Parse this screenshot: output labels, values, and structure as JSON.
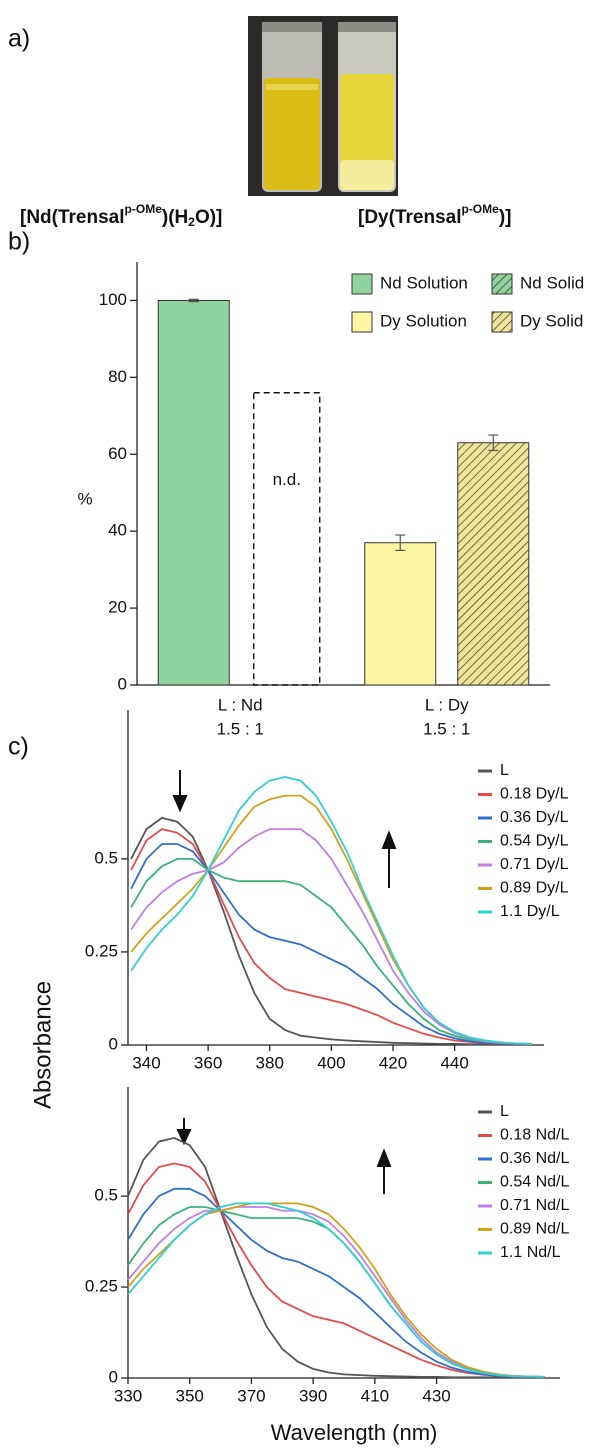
{
  "panel_a": {
    "label": "a)",
    "captions": [
      [
        "[Nd(Trensal",
        "p-OMe",
        ")(H",
        "2",
        "O)]"
      ],
      [
        "[Dy(Trensal",
        "p-OMe",
        ")]"
      ]
    ]
  },
  "chart_data": [
    {
      "type": "bar",
      "panel": "b)",
      "ylabel": "%",
      "categories": [
        "L  : Nd",
        "L  : Dy"
      ],
      "category_sublabels": [
        "1.5 : 1",
        "1.5 : 1"
      ],
      "ylim": [
        0,
        110
      ],
      "yticks": [
        0,
        20,
        40,
        60,
        80,
        100
      ],
      "legend": "upper right",
      "series": [
        {
          "name": "Nd Solution",
          "color": "#8fd49f",
          "hatch": false,
          "values": [
            100,
            null
          ],
          "errors": [
            0.3,
            null
          ]
        },
        {
          "name": "Nd Solid",
          "color": "#8fd49f",
          "hatch": true,
          "values": [
            null,
            null
          ],
          "errors": [
            null,
            null
          ]
        },
        {
          "name": "Dy Solution",
          "color": "#fbf6a2",
          "hatch": false,
          "values": [
            null,
            37
          ],
          "errors": [
            null,
            2
          ]
        },
        {
          "name": "Dy Solid",
          "color": "#eee596",
          "hatch": true,
          "values": [
            null,
            63
          ],
          "errors": [
            null,
            2
          ]
        }
      ],
      "annotations": [
        {
          "text": "n.d.",
          "y": 76
        }
      ]
    },
    {
      "type": "line",
      "panel": "c)",
      "ylabel": "Absorbance",
      "xlim": [
        334,
        469
      ],
      "ylim": [
        0,
        0.9
      ],
      "xticks": [
        340,
        360,
        380,
        400,
        420,
        440
      ],
      "yticks": [
        0,
        0.25,
        0.5
      ],
      "x": [
        335,
        340,
        345,
        350,
        355,
        360,
        365,
        370,
        375,
        380,
        385,
        390,
        395,
        400,
        405,
        410,
        415,
        420,
        425,
        430,
        435,
        440,
        445,
        450,
        455,
        460,
        465
      ],
      "series": [
        {
          "name": "L",
          "color": "#555555",
          "values": [
            0.5,
            0.58,
            0.61,
            0.6,
            0.56,
            0.47,
            0.36,
            0.24,
            0.14,
            0.07,
            0.04,
            0.025,
            0.02,
            0.015,
            0.012,
            0.01,
            0.008,
            0.006,
            0.005,
            0.004,
            0.003,
            0.003,
            0.002,
            0.002,
            0.002,
            0.002,
            0.002
          ]
        },
        {
          "name": "0.18 Dy/L",
          "color": "#e84a4a",
          "values": [
            0.47,
            0.55,
            0.58,
            0.57,
            0.54,
            0.47,
            0.38,
            0.29,
            0.22,
            0.18,
            0.15,
            0.14,
            0.13,
            0.12,
            0.11,
            0.095,
            0.08,
            0.06,
            0.045,
            0.03,
            0.02,
            0.012,
            0.008,
            0.005,
            0.004,
            0.003,
            0.003
          ]
        },
        {
          "name": "0.36 Dy/L",
          "color": "#2f6fd1",
          "values": [
            0.42,
            0.5,
            0.54,
            0.54,
            0.52,
            0.47,
            0.41,
            0.35,
            0.31,
            0.29,
            0.28,
            0.27,
            0.25,
            0.23,
            0.21,
            0.18,
            0.15,
            0.11,
            0.08,
            0.05,
            0.03,
            0.018,
            0.01,
            0.006,
            0.004,
            0.003,
            0.003
          ]
        },
        {
          "name": "0.54 Dy/L",
          "color": "#3ab27a",
          "values": [
            0.37,
            0.44,
            0.48,
            0.5,
            0.5,
            0.47,
            0.45,
            0.44,
            0.44,
            0.44,
            0.44,
            0.43,
            0.4,
            0.37,
            0.32,
            0.27,
            0.21,
            0.16,
            0.11,
            0.07,
            0.04,
            0.025,
            0.015,
            0.009,
            0.006,
            0.004,
            0.003
          ]
        },
        {
          "name": "0.71 Dy/L",
          "color": "#c07ee6",
          "values": [
            0.31,
            0.37,
            0.41,
            0.44,
            0.46,
            0.47,
            0.49,
            0.53,
            0.56,
            0.58,
            0.58,
            0.58,
            0.55,
            0.5,
            0.43,
            0.36,
            0.28,
            0.2,
            0.14,
            0.09,
            0.055,
            0.032,
            0.018,
            0.01,
            0.006,
            0.004,
            0.003
          ]
        },
        {
          "name": "0.89 Dy/L",
          "color": "#d4a017",
          "values": [
            0.25,
            0.3,
            0.34,
            0.38,
            0.42,
            0.47,
            0.53,
            0.59,
            0.64,
            0.66,
            0.67,
            0.67,
            0.64,
            0.58,
            0.5,
            0.41,
            0.32,
            0.23,
            0.16,
            0.1,
            0.06,
            0.035,
            0.02,
            0.012,
            0.007,
            0.004,
            0.003
          ]
        },
        {
          "name": "1.1 Dy/L",
          "color": "#2fd0d8",
          "values": [
            0.2,
            0.26,
            0.31,
            0.35,
            0.4,
            0.47,
            0.55,
            0.63,
            0.68,
            0.71,
            0.72,
            0.71,
            0.67,
            0.6,
            0.52,
            0.42,
            0.33,
            0.24,
            0.16,
            0.1,
            0.06,
            0.035,
            0.02,
            0.012,
            0.007,
            0.004,
            0.003
          ]
        }
      ]
    },
    {
      "type": "line",
      "xlabel": "Wavelength (nm)",
      "xlim": [
        330,
        470
      ],
      "ylim": [
        0,
        0.8
      ],
      "xticks": [
        330,
        350,
        370,
        390,
        410,
        430
      ],
      "yticks": [
        0,
        0.25,
        0.5
      ],
      "x": [
        330,
        335,
        340,
        345,
        350,
        355,
        360,
        365,
        370,
        375,
        380,
        385,
        390,
        395,
        400,
        405,
        410,
        415,
        420,
        425,
        430,
        435,
        440,
        445,
        450,
        455,
        460,
        465
      ],
      "series": [
        {
          "name": "L",
          "color": "#555555",
          "values": [
            0.5,
            0.6,
            0.65,
            0.66,
            0.64,
            0.58,
            0.46,
            0.34,
            0.23,
            0.14,
            0.08,
            0.045,
            0.025,
            0.015,
            0.01,
            0.008,
            0.006,
            0.005,
            0.004,
            0.003,
            0.003,
            0.002,
            0.002,
            0.002,
            0.002,
            0.002,
            0.002,
            0.002
          ]
        },
        {
          "name": "0.18 Nd/L",
          "color": "#e84a4a",
          "values": [
            0.45,
            0.53,
            0.58,
            0.59,
            0.58,
            0.54,
            0.46,
            0.38,
            0.31,
            0.25,
            0.21,
            0.19,
            0.17,
            0.16,
            0.15,
            0.13,
            0.11,
            0.09,
            0.07,
            0.05,
            0.035,
            0.022,
            0.014,
            0.009,
            0.006,
            0.004,
            0.003,
            0.003
          ]
        },
        {
          "name": "0.36 Nd/L",
          "color": "#2f6fd1",
          "values": [
            0.38,
            0.45,
            0.5,
            0.52,
            0.52,
            0.5,
            0.46,
            0.42,
            0.38,
            0.35,
            0.33,
            0.32,
            0.3,
            0.28,
            0.25,
            0.22,
            0.18,
            0.14,
            0.1,
            0.07,
            0.045,
            0.028,
            0.017,
            0.01,
            0.006,
            0.004,
            0.003,
            0.003
          ]
        },
        {
          "name": "0.54 Nd/L",
          "color": "#3ab27a",
          "values": [
            0.31,
            0.37,
            0.42,
            0.45,
            0.47,
            0.47,
            0.46,
            0.45,
            0.44,
            0.44,
            0.44,
            0.44,
            0.43,
            0.41,
            0.37,
            0.32,
            0.26,
            0.2,
            0.15,
            0.1,
            0.065,
            0.04,
            0.024,
            0.014,
            0.008,
            0.005,
            0.004,
            0.003
          ]
        },
        {
          "name": "0.71 Nd/L",
          "color": "#c07ee6",
          "values": [
            0.27,
            0.32,
            0.37,
            0.41,
            0.44,
            0.46,
            0.46,
            0.47,
            0.47,
            0.47,
            0.46,
            0.46,
            0.45,
            0.43,
            0.39,
            0.34,
            0.28,
            0.22,
            0.16,
            0.11,
            0.07,
            0.045,
            0.027,
            0.016,
            0.009,
            0.005,
            0.004,
            0.003
          ]
        },
        {
          "name": "0.89 Nd/L",
          "color": "#d4a017",
          "values": [
            0.25,
            0.3,
            0.34,
            0.38,
            0.42,
            0.45,
            0.46,
            0.47,
            0.48,
            0.48,
            0.48,
            0.48,
            0.47,
            0.45,
            0.41,
            0.36,
            0.3,
            0.23,
            0.17,
            0.12,
            0.08,
            0.05,
            0.03,
            0.018,
            0.01,
            0.006,
            0.004,
            0.003
          ]
        },
        {
          "name": "1.1 Nd/L",
          "color": "#2fd0d8",
          "values": [
            0.23,
            0.28,
            0.33,
            0.38,
            0.42,
            0.45,
            0.47,
            0.48,
            0.48,
            0.48,
            0.47,
            0.46,
            0.44,
            0.41,
            0.37,
            0.32,
            0.26,
            0.2,
            0.15,
            0.1,
            0.065,
            0.04,
            0.024,
            0.014,
            0.008,
            0.005,
            0.004,
            0.003
          ]
        }
      ]
    }
  ]
}
